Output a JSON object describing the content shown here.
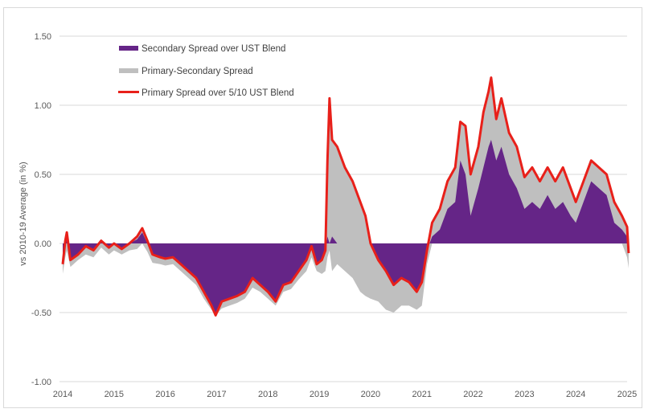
{
  "chart_data": {
    "type": "area",
    "ylabel": "vs 2010-19 Average (in %)",
    "ylim": [
      -1.0,
      1.5
    ],
    "yticks": [
      "1.50",
      "1.00",
      "0.50",
      "0.00",
      "-0.50",
      "-1.00"
    ],
    "ytick_values": [
      1.5,
      1.0,
      0.5,
      0.0,
      -0.5,
      -1.0
    ],
    "xlim": [
      2014,
      2025
    ],
    "xticks": [
      "2014",
      "2015",
      "2016",
      "2017",
      "2018",
      "2019",
      "2020",
      "2021",
      "2022",
      "2023",
      "2024",
      "2025"
    ],
    "grid": true,
    "legend_placement": "top-left",
    "legend": [
      {
        "name": "Secondary Spread over UST Blend",
        "color": "#652587",
        "kind": "area"
      },
      {
        "name": "Primary-Secondary Spread",
        "color": "#bfbfbf",
        "kind": "area"
      },
      {
        "name": "Primary Spread over 5/10 UST Blend",
        "color": "#e8201a",
        "kind": "line"
      }
    ],
    "x": [
      2014.0,
      2014.05,
      2014.08,
      2014.15,
      2014.3,
      2014.45,
      2014.6,
      2014.75,
      2014.9,
      2015.0,
      2015.15,
      2015.3,
      2015.45,
      2015.55,
      2015.65,
      2015.75,
      2015.9,
      2016.0,
      2016.15,
      2016.3,
      2016.45,
      2016.6,
      2016.75,
      2016.9,
      2016.98,
      2017.1,
      2017.25,
      2017.4,
      2017.55,
      2017.7,
      2017.85,
      2018.0,
      2018.15,
      2018.3,
      2018.45,
      2018.6,
      2018.75,
      2018.85,
      2018.95,
      2019.05,
      2019.12,
      2019.16,
      2019.2,
      2019.25,
      2019.35,
      2019.5,
      2019.65,
      2019.8,
      2019.9,
      2020.0,
      2020.15,
      2020.3,
      2020.45,
      2020.6,
      2020.75,
      2020.9,
      2021.0,
      2021.1,
      2021.2,
      2021.35,
      2021.5,
      2021.65,
      2021.75,
      2021.85,
      2021.95,
      2022.1,
      2022.2,
      2022.3,
      2022.35,
      2022.45,
      2022.55,
      2022.7,
      2022.85,
      2023.0,
      2023.15,
      2023.3,
      2023.45,
      2023.6,
      2023.75,
      2023.9,
      2024.0,
      2024.15,
      2024.3,
      2024.45,
      2024.6,
      2024.75,
      2024.9,
      2025.0,
      2025.03
    ],
    "series": [
      {
        "name": "Primary Spread over 5/10 UST Blend",
        "values": [
          -0.15,
          0.02,
          0.08,
          -0.12,
          -0.08,
          -0.02,
          -0.05,
          0.02,
          -0.03,
          0.0,
          -0.04,
          0.0,
          0.05,
          0.11,
          0.02,
          -0.08,
          -0.1,
          -0.11,
          -0.1,
          -0.15,
          -0.2,
          -0.25,
          -0.35,
          -0.45,
          -0.52,
          -0.42,
          -0.4,
          -0.38,
          -0.35,
          -0.25,
          -0.3,
          -0.35,
          -0.42,
          -0.3,
          -0.28,
          -0.2,
          -0.12,
          -0.02,
          -0.15,
          -0.12,
          -0.05,
          0.6,
          1.05,
          0.75,
          0.7,
          0.55,
          0.45,
          0.3,
          0.2,
          0.0,
          -0.12,
          -0.2,
          -0.3,
          -0.25,
          -0.28,
          -0.35,
          -0.28,
          -0.05,
          0.15,
          0.25,
          0.45,
          0.55,
          0.88,
          0.85,
          0.5,
          0.7,
          0.95,
          1.1,
          1.2,
          0.9,
          1.05,
          0.8,
          0.7,
          0.48,
          0.55,
          0.45,
          0.55,
          0.45,
          0.55,
          0.4,
          0.3,
          0.45,
          0.6,
          0.55,
          0.5,
          0.3,
          0.2,
          0.12,
          -0.07
        ]
      },
      {
        "name": "Secondary Spread over UST Blend",
        "values": [
          -0.15,
          0.0,
          0.05,
          -0.12,
          -0.08,
          -0.02,
          -0.05,
          0.02,
          -0.03,
          0.0,
          -0.04,
          0.0,
          0.03,
          0.08,
          0.0,
          -0.08,
          -0.1,
          -0.11,
          -0.1,
          -0.15,
          -0.2,
          -0.25,
          -0.35,
          -0.45,
          -0.5,
          -0.42,
          -0.4,
          -0.38,
          -0.35,
          -0.25,
          -0.3,
          -0.35,
          -0.42,
          -0.3,
          -0.28,
          -0.2,
          -0.12,
          -0.02,
          -0.15,
          -0.12,
          -0.05,
          0.05,
          0.0,
          0.05,
          0.0,
          0.0,
          0.0,
          0.0,
          0.0,
          0.0,
          -0.12,
          -0.2,
          -0.3,
          -0.25,
          -0.28,
          -0.35,
          -0.28,
          -0.05,
          0.05,
          0.1,
          0.25,
          0.3,
          0.6,
          0.5,
          0.2,
          0.4,
          0.55,
          0.7,
          0.75,
          0.6,
          0.7,
          0.5,
          0.4,
          0.25,
          0.3,
          0.25,
          0.35,
          0.25,
          0.3,
          0.2,
          0.15,
          0.3,
          0.45,
          0.4,
          0.35,
          0.15,
          0.1,
          0.05,
          -0.02
        ]
      },
      {
        "name": "Primary-Secondary Spread",
        "values": [
          -0.22,
          -0.1,
          -0.05,
          -0.17,
          -0.12,
          -0.08,
          -0.1,
          -0.03,
          -0.08,
          -0.05,
          -0.08,
          -0.05,
          -0.04,
          0.0,
          -0.06,
          -0.14,
          -0.15,
          -0.16,
          -0.15,
          -0.2,
          -0.25,
          -0.3,
          -0.4,
          -0.48,
          -0.52,
          -0.47,
          -0.45,
          -0.43,
          -0.4,
          -0.32,
          -0.35,
          -0.4,
          -0.45,
          -0.35,
          -0.33,
          -0.26,
          -0.2,
          -0.1,
          -0.2,
          -0.22,
          -0.2,
          -0.1,
          -0.05,
          -0.2,
          -0.15,
          -0.2,
          -0.25,
          -0.35,
          -0.38,
          -0.4,
          -0.42,
          -0.48,
          -0.5,
          -0.45,
          -0.45,
          -0.48,
          -0.45,
          -0.15,
          0,
          0,
          0,
          0,
          0,
          0,
          0,
          0,
          0,
          0,
          0,
          0,
          0,
          0,
          0,
          0,
          0,
          0,
          0,
          0,
          0,
          0,
          0,
          0,
          0,
          0,
          0,
          0,
          0,
          -0.1,
          -0.18
        ]
      }
    ]
  }
}
